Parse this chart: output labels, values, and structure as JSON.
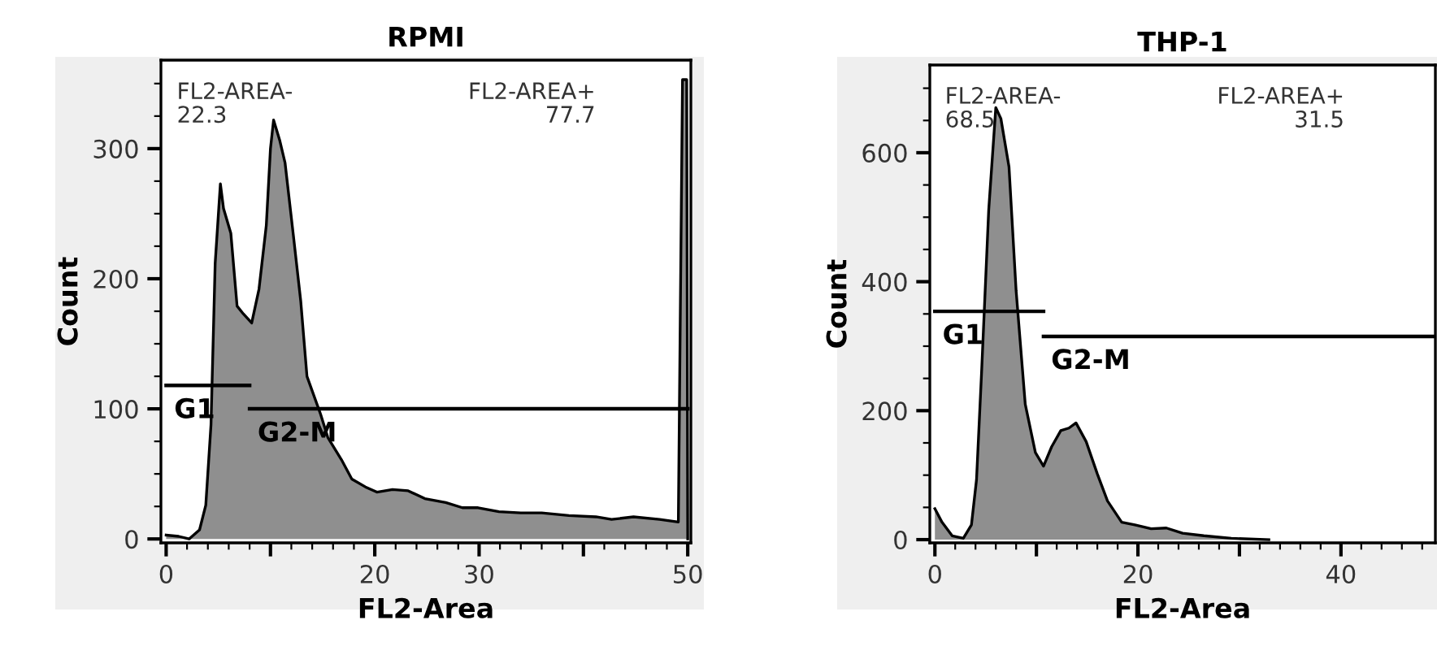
{
  "chart_data": [
    {
      "type": "area",
      "title": "RPMI",
      "xlabel": "FL2-Area",
      "ylabel": "Count",
      "xlim": [
        -0.5,
        50.3
      ],
      "ylim": [
        -3,
        368
      ],
      "xticks": [
        0,
        {
          "value": 10,
          "label": null
        },
        20,
        30,
        {
          "value": 40,
          "label": null
        },
        50
      ],
      "yticks": [
        0,
        100,
        200,
        300
      ],
      "annotations": [
        "FL2-AREA-\n22.3",
        "FL2-AREA+\n77.7"
      ],
      "series": [
        {
          "color": "#8f8f8f",
          "x": [
            0,
            1.2,
            2.2,
            3.2,
            3.8,
            4.3,
            4.7,
            5.2,
            5.5,
            6.2,
            6.8,
            7.4,
            8.2,
            8.9,
            9.6,
            10.0,
            10.3,
            10.9,
            11.4,
            12.2,
            12.9,
            13.5,
            14.8,
            15.5,
            16.8,
            17.8,
            19.1,
            20.2,
            21.7,
            23.2,
            24.8,
            26.8,
            28.4,
            29.9,
            31.9,
            34,
            36,
            38.6,
            41.2,
            42.7,
            44.8,
            47.3,
            49.1,
            49.5,
            49.9,
            50.0
          ],
          "values": [
            3,
            2,
            0,
            7,
            26,
            88,
            212,
            273,
            254,
            235,
            179,
            173,
            166,
            192,
            241,
            300,
            322,
            306,
            289,
            233,
            183,
            125,
            96,
            78,
            61,
            46,
            40,
            36,
            38,
            37,
            31,
            28,
            24,
            24,
            21,
            20,
            20,
            18,
            17,
            15,
            17,
            15,
            13,
            353,
            353,
            0
          ]
        },
        {
          "type": "line",
          "name": "G1",
          "color": "#000000",
          "x": [
            0,
            8
          ],
          "values": [
            118,
            118
          ]
        },
        {
          "type": "line",
          "name": "G2-M",
          "color": "#000000",
          "x": [
            8,
            50
          ],
          "values": [
            100,
            100
          ]
        }
      ]
    },
    {
      "type": "area",
      "title": "THP-1",
      "xlabel": "FL2-Area",
      "ylabel": "Count",
      "xlim": [
        -0.5,
        49.3
      ],
      "ylim": [
        -5,
        736
      ],
      "xticks": [
        0,
        {
          "value": 10,
          "label": null
        },
        20,
        {
          "value": 30,
          "label": null
        },
        40
      ],
      "yticks": [
        0,
        200,
        400,
        600
      ],
      "annotations": [
        "FL2-AREA-\n68.5",
        "FL2-AREA+\n31.5"
      ],
      "series": [
        {
          "color": "#8f8f8f",
          "x": [
            0,
            0.7,
            1.7,
            2.8,
            3.6,
            4.1,
            4.6,
            5.3,
            6.0,
            6.5,
            7.3,
            8.0,
            8.9,
            9.9,
            10.7,
            11.5,
            12.4,
            13.2,
            13.9,
            14.9,
            16.0,
            17.0,
            18.4,
            19.7,
            21.3,
            22.8,
            24.4,
            26.5,
            29.2,
            32.9
          ],
          "values": [
            48,
            27,
            6,
            2,
            23,
            93,
            260,
            511,
            670,
            653,
            578,
            386,
            210,
            135,
            114,
            144,
            169,
            173,
            181,
            152,
            102,
            60,
            27,
            23,
            17,
            18,
            10,
            6,
            2,
            0
          ]
        },
        {
          "type": "line",
          "name": "G1",
          "color": "#000000",
          "x": [
            0,
            10.7
          ],
          "values": [
            354,
            354
          ]
        },
        {
          "type": "line",
          "name": "G2-M",
          "color": "#000000",
          "x": [
            10.7,
            49.3
          ],
          "values": [
            315,
            315
          ]
        }
      ]
    }
  ]
}
